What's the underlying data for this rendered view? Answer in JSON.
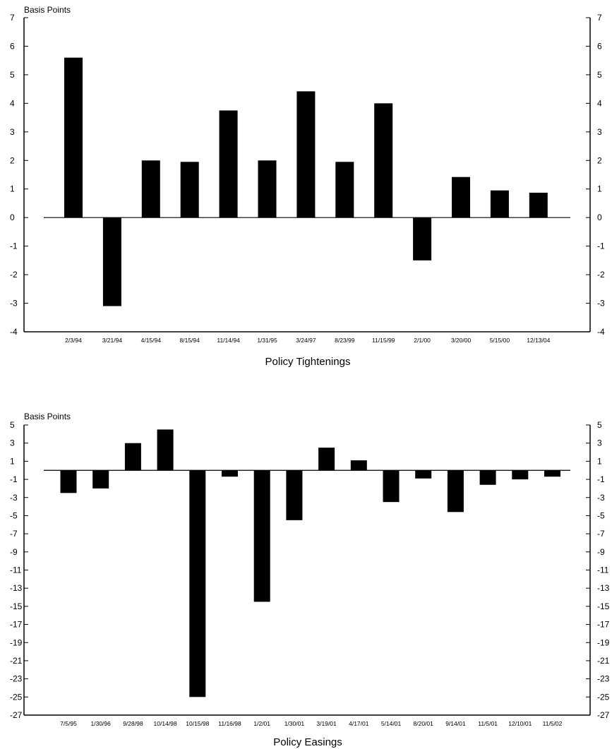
{
  "chart_data": [
    {
      "type": "bar",
      "title": "",
      "ylabel": "Basis Points",
      "xlabel": "Policy Tightenings",
      "ylim": [
        -4,
        7
      ],
      "yticks": [
        7,
        6,
        5,
        4,
        3,
        2,
        1,
        0,
        -1,
        -2,
        -3,
        -4
      ],
      "categories": [
        "2/3/94",
        "3/21/94",
        "4/15/94",
        "8/15/94",
        "11/14/94",
        "1/31/95",
        "3/24/97",
        "8/23/99",
        "11/15/99",
        "2/1/00",
        "3/20/00",
        "5/15/00",
        "12/13/04"
      ],
      "values": [
        5.6,
        -3.1,
        2.0,
        1.95,
        3.75,
        2.0,
        4.42,
        1.95,
        4.0,
        -1.5,
        1.42,
        0.95,
        0.87
      ],
      "bar_color": "#000000",
      "right_axis": true,
      "grid": false
    },
    {
      "type": "bar",
      "title": "",
      "ylabel": "Basis Points",
      "xlabel": "Policy Easings",
      "ylim": [
        -27,
        5
      ],
      "yticks": [
        5,
        3,
        1,
        -1,
        -3,
        -5,
        -7,
        -9,
        -11,
        -13,
        -15,
        -17,
        -19,
        -21,
        -23,
        -25,
        -27
      ],
      "categories": [
        "7/5/95",
        "1/30/96",
        "9/28/98",
        "10/14/98",
        "10/15/98",
        "11/16/98",
        "1/2/01",
        "1/30/01",
        "3/19/01",
        "4/17/01",
        "5/14/01",
        "8/20/01",
        "9/14/01",
        "11/5/01",
        "12/10/01",
        "11/5/02"
      ],
      "values": [
        -2.5,
        -2.0,
        3.0,
        4.5,
        -25.0,
        -0.7,
        -14.5,
        -5.5,
        2.5,
        1.1,
        -3.5,
        -0.9,
        -4.6,
        -1.6,
        -1.0,
        -0.7
      ],
      "bar_color": "#000000",
      "right_axis": true,
      "grid": false
    }
  ]
}
